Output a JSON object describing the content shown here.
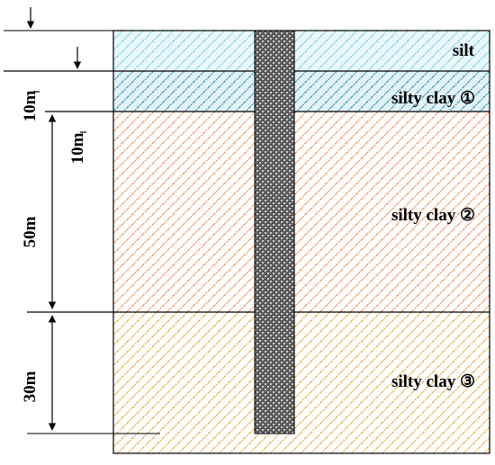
{
  "layers": [
    {
      "id": "silt",
      "label": "silt",
      "color": "#6ecde0",
      "bg": "#eaf7fb"
    },
    {
      "id": "silty-clay-1",
      "label": "silty clay ①",
      "color": "#2b8fb0",
      "bg": "#e3f2f7"
    },
    {
      "id": "silty-clay-2",
      "label": "silty clay ②",
      "color": "#f08a4b",
      "bg": "#ffffff"
    },
    {
      "id": "silty-clay-3",
      "label": "silty clay ③",
      "color": "#e5a532",
      "bg": "#ffffff"
    }
  ],
  "dimensions": {
    "layer_1_thickness": "10m",
    "layer_1_upper_thickness": "10m",
    "layer_2_thickness": "50m",
    "layer_3_thickness": "30m"
  },
  "colors": {
    "pile_fill": "#555555",
    "pile_dots": "#cfcfcf",
    "outline": "#000000"
  }
}
